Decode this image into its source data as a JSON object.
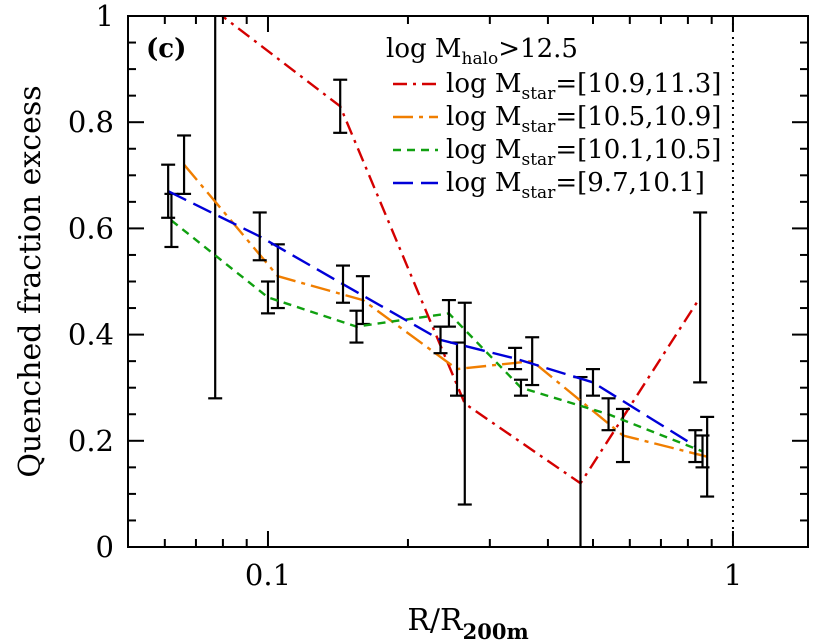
{
  "chart_data": {
    "type": "line",
    "panel_label": "(c)",
    "xlabel": "R/R",
    "xlabel_sub": "200m",
    "ylabel": "Quenched fraction excess",
    "xscale": "log",
    "xlim": [
      0.05,
      1.45
    ],
    "ylim": [
      0,
      1
    ],
    "x_ticks": [
      {
        "value": 0.1,
        "label": "0.1"
      },
      {
        "value": 1,
        "label": "1"
      }
    ],
    "y_ticks": [
      {
        "value": 0,
        "label": "0"
      },
      {
        "value": 0.2,
        "label": "0.2"
      },
      {
        "value": 0.4,
        "label": "0.4"
      },
      {
        "value": 0.6,
        "label": "0.6"
      },
      {
        "value": 0.8,
        "label": "0.8"
      },
      {
        "value": 1,
        "label": "1"
      }
    ],
    "reference_line_x": 1,
    "legend_title": {
      "pre": "log M",
      "sub": "halo",
      "post": ">12.5"
    },
    "legend_position": "top-right",
    "series": [
      {
        "name": {
          "pre": "log M",
          "sub": "star",
          "post": "=[10.9,11.3]"
        },
        "color": "#d40000",
        "dash": "dashdot",
        "x": [
          0.077,
          0.143,
          0.265,
          0.47,
          0.85
        ],
        "y": [
          1.01,
          0.83,
          0.27,
          0.12,
          0.47
        ],
        "err": [
          0.73,
          0.05,
          0.19,
          0.2,
          0.16
        ]
      },
      {
        "name": {
          "pre": "log M",
          "sub": "star",
          "post": "=[10.5,10.9]"
        },
        "color": "#f07e00",
        "dash": "longdashdot",
        "x": [
          0.066,
          0.105,
          0.16,
          0.255,
          0.37,
          0.58,
          0.88
        ],
        "y": [
          0.72,
          0.51,
          0.465,
          0.335,
          0.35,
          0.21,
          0.17
        ],
        "err": [
          0.055,
          0.06,
          0.045,
          0.05,
          0.045,
          0.05,
          0.075
        ]
      },
      {
        "name": {
          "pre": "log M",
          "sub": "star",
          "post": "=[10.1,10.5]"
        },
        "color": "#10a010",
        "dash": "shortdash",
        "x": [
          0.062,
          0.1,
          0.155,
          0.245,
          0.35,
          0.54,
          0.86
        ],
        "y": [
          0.615,
          0.47,
          0.415,
          0.44,
          0.3,
          0.25,
          0.18
        ],
        "err": [
          0.05,
          0.03,
          0.03,
          0.025,
          0.015,
          0.03,
          0.03
        ]
      },
      {
        "name": {
          "pre": "log M",
          "sub": "star",
          "post": "=[9.7,10.1]"
        },
        "color": "#0000d8",
        "dash": "longdash",
        "x": [
          0.061,
          0.096,
          0.145,
          0.235,
          0.34,
          0.5,
          0.83
        ],
        "y": [
          0.67,
          0.585,
          0.495,
          0.39,
          0.355,
          0.31,
          0.19
        ],
        "err": [
          0.05,
          0.045,
          0.035,
          0.025,
          0.02,
          0.025,
          0.03
        ]
      }
    ]
  }
}
